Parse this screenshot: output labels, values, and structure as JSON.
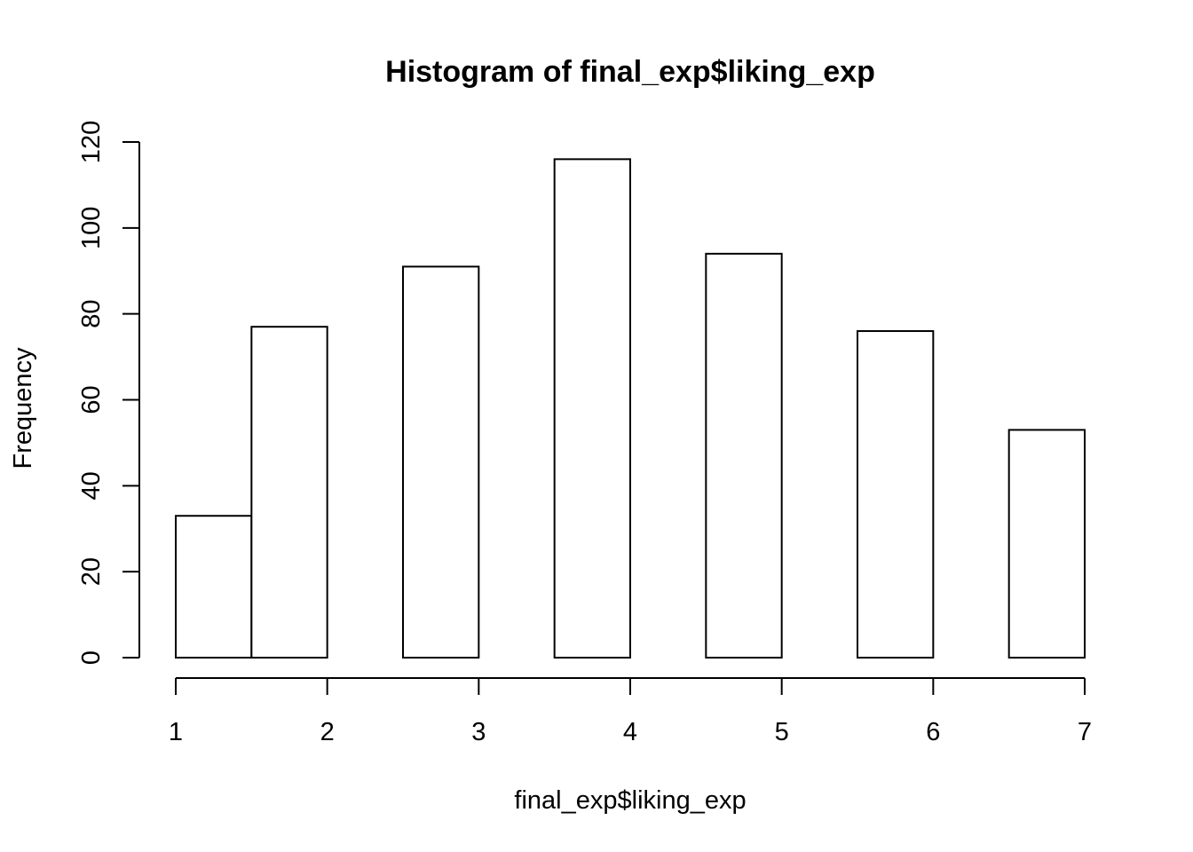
{
  "chart_data": {
    "type": "bar",
    "title": "Histogram of final_exp$liking_exp",
    "xlabel": "final_exp$liking_exp",
    "ylabel": "Frequency",
    "bins": [
      {
        "x0": 1.0,
        "x1": 1.5,
        "value": 33
      },
      {
        "x0": 1.5,
        "x1": 2.0,
        "value": 77
      },
      {
        "x0": 2.0,
        "x1": 2.5,
        "value": 0
      },
      {
        "x0": 2.5,
        "x1": 3.0,
        "value": 91
      },
      {
        "x0": 3.0,
        "x1": 3.5,
        "value": 0
      },
      {
        "x0": 3.5,
        "x1": 4.0,
        "value": 116
      },
      {
        "x0": 4.0,
        "x1": 4.5,
        "value": 0
      },
      {
        "x0": 4.5,
        "x1": 5.0,
        "value": 94
      },
      {
        "x0": 5.0,
        "x1": 5.5,
        "value": 0
      },
      {
        "x0": 5.5,
        "x1": 6.0,
        "value": 76
      },
      {
        "x0": 6.0,
        "x1": 6.5,
        "value": 0
      },
      {
        "x0": 6.5,
        "x1": 7.0,
        "value": 53
      }
    ],
    "xlim": [
      1,
      7
    ],
    "ylim": [
      0,
      120
    ],
    "xticks": [
      "1",
      "2",
      "3",
      "4",
      "5",
      "6",
      "7"
    ],
    "yticks": [
      "0",
      "20",
      "40",
      "60",
      "80",
      "100",
      "120"
    ],
    "grid": false,
    "legend": "none"
  }
}
